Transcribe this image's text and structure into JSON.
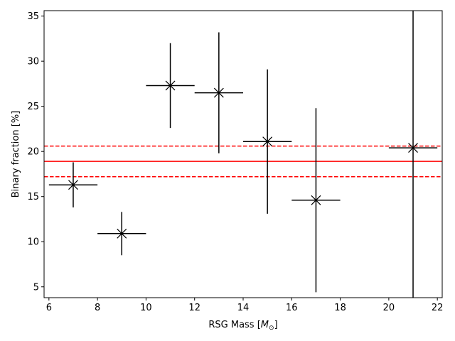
{
  "chart_data": {
    "type": "scatter",
    "xlabel_main": "RSG Mass [",
    "xlabel_math": "M",
    "xlabel_sub": "⊙",
    "xlabel_close": "]",
    "ylabel": "Binary fraction [%]",
    "xlim": [
      5.8,
      22.2
    ],
    "ylim": [
      3.8,
      35.6
    ],
    "xticks": [
      6,
      8,
      10,
      12,
      14,
      16,
      18,
      20,
      22
    ],
    "yticks": [
      5,
      10,
      15,
      20,
      25,
      30,
      35
    ],
    "grid": false,
    "points": [
      {
        "x": 7,
        "y": 16.3,
        "xerr": 1,
        "ylo": 13.8,
        "yhi": 18.8
      },
      {
        "x": 9,
        "y": 10.9,
        "xerr": 1,
        "ylo": 8.5,
        "yhi": 13.3
      },
      {
        "x": 11,
        "y": 27.3,
        "xerr": 1,
        "ylo": 22.6,
        "yhi": 32.0
      },
      {
        "x": 13,
        "y": 26.5,
        "xerr": 1,
        "ylo": 19.8,
        "yhi": 33.2
      },
      {
        "x": 15,
        "y": 21.1,
        "xerr": 1,
        "ylo": 13.1,
        "yhi": 29.1
      },
      {
        "x": 17,
        "y": 14.6,
        "xerr": 1,
        "ylo": 4.4,
        "yhi": 24.8
      },
      {
        "x": 21,
        "y": 20.4,
        "xerr": 1,
        "ylo": 3.8,
        "yhi": 35.6
      }
    ],
    "mean_line": 18.9,
    "band_lines": [
      17.2,
      20.6
    ],
    "point_color": "#000000",
    "line_color": "#ff0000"
  }
}
